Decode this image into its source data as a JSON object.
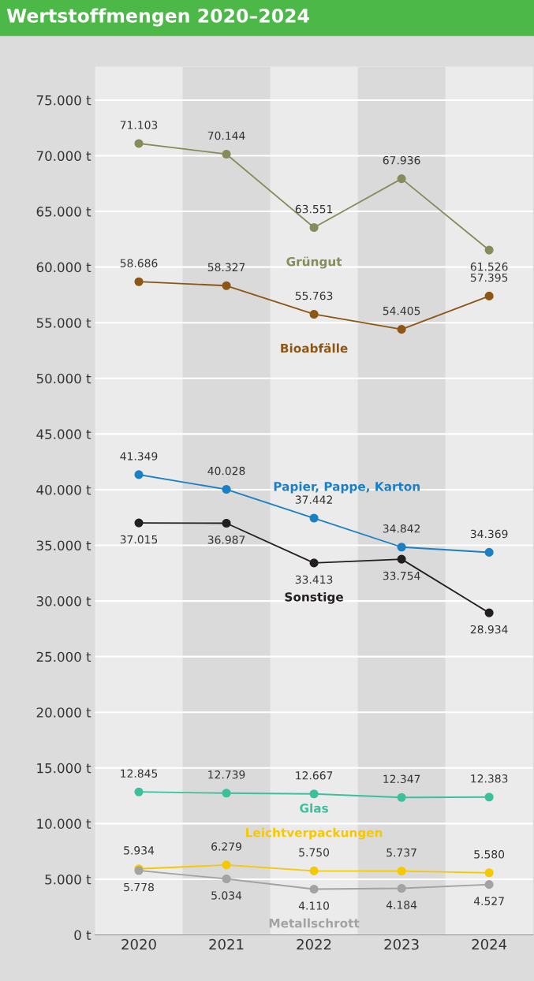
{
  "chart_data": {
    "type": "line",
    "title": "Wertstoffmengen 2020–2024",
    "categories": [
      "2020",
      "2021",
      "2022",
      "2023",
      "2024"
    ],
    "series": [
      {
        "name": "Grüngut",
        "color": "#878c5a",
        "values": [
          71103,
          70144,
          63551,
          67936,
          61526
        ],
        "value_labels": [
          "71.103",
          "70.144",
          "63.551",
          "67.936",
          "61.526"
        ]
      },
      {
        "name": "Bioabfälle",
        "color": "#8c5716",
        "values": [
          58686,
          58327,
          55763,
          54405,
          57395
        ],
        "value_labels": [
          "58.686",
          "58.327",
          "55.763",
          "54.405",
          "57.395"
        ]
      },
      {
        "name": "Papier, Pappe, Karton",
        "color": "#1b7fc4",
        "values": [
          41349,
          40028,
          37442,
          34842,
          34369
        ],
        "value_labels": [
          "41.349",
          "40.028",
          "37.442",
          "34.842",
          "34.369"
        ]
      },
      {
        "name": "Sonstige",
        "color": "#231f20",
        "values": [
          37015,
          36987,
          33413,
          33754,
          28934
        ],
        "value_labels": [
          "37.015",
          "36.987",
          "33.413",
          "33.754",
          "28.934"
        ]
      },
      {
        "name": "Glas",
        "color": "#3ebf9c",
        "values": [
          12845,
          12739,
          12667,
          12347,
          12383
        ],
        "value_labels": [
          "12.845",
          "12.739",
          "12.667",
          "12.347",
          "12.383"
        ]
      },
      {
        "name": "Leichtverpackungen",
        "color": "#f6c800",
        "values": [
          5934,
          6279,
          5750,
          5737,
          5580
        ],
        "value_labels": [
          "5.934",
          "6.279",
          "5.750",
          "5.737",
          "5.580"
        ]
      },
      {
        "name": "Metallschrott",
        "color": "#a3a3a3",
        "values": [
          5778,
          5034,
          4110,
          4184,
          4527
        ],
        "value_labels": [
          "5.778",
          "5.034",
          "4.110",
          "4.184",
          "4.527"
        ]
      }
    ],
    "ylim": [
      0,
      78000
    ],
    "yticks": [
      {
        "value": 0,
        "label": "0 t"
      },
      {
        "value": 5000,
        "label": "5.000 t"
      },
      {
        "value": 10000,
        "label": "10.000 t"
      },
      {
        "value": 15000,
        "label": "15.000 t"
      },
      {
        "value": 20000,
        "label": "20.000 t"
      },
      {
        "value": 25000,
        "label": "25.000 t"
      },
      {
        "value": 30000,
        "label": "30.000 t"
      },
      {
        "value": 35000,
        "label": "35.000 t"
      },
      {
        "value": 40000,
        "label": "40.000 t"
      },
      {
        "value": 45000,
        "label": "45.000 t"
      },
      {
        "value": 50000,
        "label": "50.000 t"
      },
      {
        "value": 55000,
        "label": "55.000 t"
      },
      {
        "value": 60000,
        "label": "60.000 t"
      },
      {
        "value": 65000,
        "label": "65.000 t"
      },
      {
        "value": 70000,
        "label": "70.000 t"
      },
      {
        "value": 75000,
        "label": "75.000 t"
      }
    ],
    "grid": "y",
    "marker": "circle",
    "legend": false
  }
}
